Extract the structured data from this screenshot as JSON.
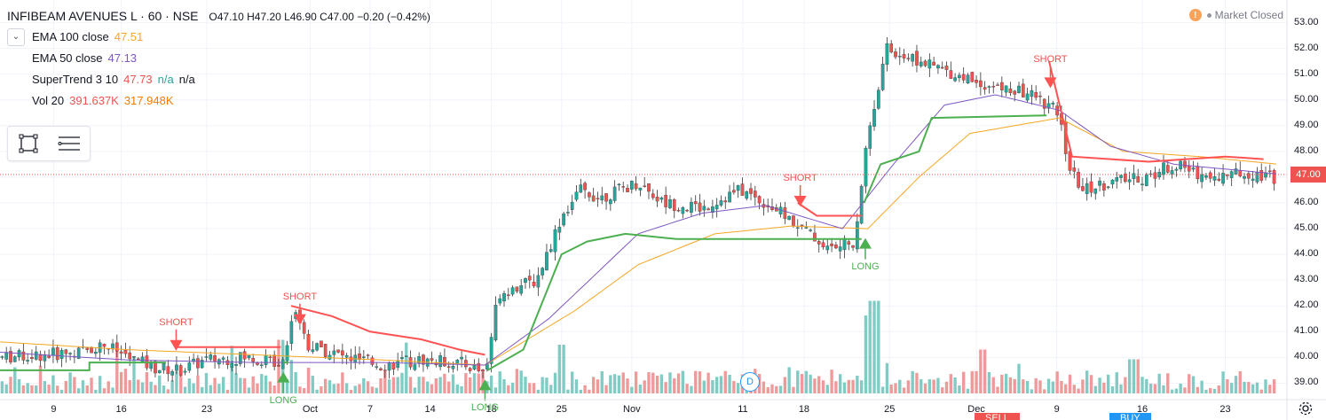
{
  "header": {
    "symbol_title": "INFIBEAM AVENUES L · 60 · NSE",
    "ohlc": "O47.10 H47.20 L46.90 C47.00 −0.20 (−0.42%)"
  },
  "indicators": [
    {
      "name": "EMA 100 close",
      "value": "47.51",
      "color": "#f5a623"
    },
    {
      "name": "EMA 50 close",
      "value": "47.13",
      "color": "#7e57c2"
    },
    {
      "name": "SuperTrend 3 10",
      "value": "47.73",
      "extra1": "n/a",
      "extra2": "n/a",
      "color": "#ef5350",
      "extra_color": "#26a69a"
    },
    {
      "name": "Vol 20",
      "value": "391.637K",
      "value2": "317.948K",
      "color": "#ef5350",
      "color2": "#f57c00"
    }
  ],
  "market_status": {
    "icon": "!",
    "label": "Market Closed"
  },
  "last_price": "47.00",
  "toolbox": {
    "icons": [
      "select-rect-icon",
      "menu-lines-icon"
    ]
  },
  "colors": {
    "up": "#26a69a",
    "down": "#ef5350",
    "ema100": "#f5a623",
    "ema50": "#7e57c2",
    "st_up": "#4caf50",
    "st_down": "#ff5252",
    "vol_up": "#80cbc4",
    "vol_down": "#ef9a9a",
    "grid": "#f0f3fa"
  },
  "chart_data": {
    "type": "candlestick",
    "title": "INFIBEAM AVENUES L · 60 · NSE",
    "xlabel": "",
    "ylabel": "",
    "ylim": [
      38.6,
      53.4
    ],
    "y_ticks": [
      "53.00",
      "52.00",
      "51.00",
      "50.00",
      "49.00",
      "48.00",
      "47.00",
      "46.00",
      "45.00",
      "44.00",
      "43.00",
      "42.00",
      "41.00",
      "40.00",
      "39.00"
    ],
    "x_ticks": [
      "9",
      "16",
      "23",
      "Oct",
      "7",
      "14",
      "18",
      "25",
      "Nov",
      "11",
      "18",
      "25",
      "Dec",
      "9",
      "16",
      "23"
    ],
    "x_tick_index": [
      0.042,
      0.095,
      0.162,
      0.243,
      0.29,
      0.337,
      0.385,
      0.44,
      0.495,
      0.582,
      0.63,
      0.697,
      0.765,
      0.828,
      0.895,
      0.96
    ],
    "price_anchors": [
      [
        0,
        40.0
      ],
      [
        0.03,
        40.1
      ],
      [
        0.06,
        40.2
      ],
      [
        0.08,
        40.5
      ],
      [
        0.1,
        40.0
      ],
      [
        0.12,
        39.6
      ],
      [
        0.14,
        39.5
      ],
      [
        0.16,
        39.9
      ],
      [
        0.19,
        40.0
      ],
      [
        0.22,
        39.8
      ],
      [
        0.23,
        42.0
      ],
      [
        0.24,
        40.5
      ],
      [
        0.27,
        40.0
      ],
      [
        0.3,
        39.7
      ],
      [
        0.33,
        39.9
      ],
      [
        0.36,
        39.8
      ],
      [
        0.38,
        39.4
      ],
      [
        0.39,
        42.5
      ],
      [
        0.42,
        43.0
      ],
      [
        0.44,
        45.5
      ],
      [
        0.455,
        46.5
      ],
      [
        0.47,
        46.2
      ],
      [
        0.5,
        46.8
      ],
      [
        0.52,
        46.0
      ],
      [
        0.55,
        45.8
      ],
      [
        0.58,
        46.5
      ],
      [
        0.6,
        46.0
      ],
      [
        0.63,
        45.0
      ],
      [
        0.65,
        44.2
      ],
      [
        0.67,
        44.5
      ],
      [
        0.68,
        48.5
      ],
      [
        0.695,
        52.0
      ],
      [
        0.72,
        51.5
      ],
      [
        0.75,
        51.0
      ],
      [
        0.78,
        50.5
      ],
      [
        0.81,
        50.2
      ],
      [
        0.83,
        49.5
      ],
      [
        0.84,
        47.2
      ],
      [
        0.85,
        46.5
      ],
      [
        0.87,
        46.8
      ],
      [
        0.9,
        47.0
      ],
      [
        0.92,
        47.5
      ],
      [
        0.95,
        47.0
      ],
      [
        0.98,
        47.2
      ],
      [
        1.0,
        47.0
      ]
    ],
    "ema50_anchors": [
      [
        0,
        40.2
      ],
      [
        0.1,
        39.9
      ],
      [
        0.2,
        39.8
      ],
      [
        0.3,
        39.8
      ],
      [
        0.38,
        39.7
      ],
      [
        0.43,
        41.5
      ],
      [
        0.5,
        44.8
      ],
      [
        0.55,
        45.6
      ],
      [
        0.6,
        45.9
      ],
      [
        0.66,
        45.0
      ],
      [
        0.7,
        47.5
      ],
      [
        0.74,
        49.8
      ],
      [
        0.78,
        50.2
      ],
      [
        0.83,
        49.6
      ],
      [
        0.87,
        48.2
      ],
      [
        0.92,
        47.5
      ],
      [
        1.0,
        47.13
      ]
    ],
    "ema100_anchors": [
      [
        0,
        40.6
      ],
      [
        0.1,
        40.3
      ],
      [
        0.2,
        40.1
      ],
      [
        0.3,
        39.9
      ],
      [
        0.38,
        39.7
      ],
      [
        0.45,
        41.8
      ],
      [
        0.5,
        43.6
      ],
      [
        0.56,
        44.8
      ],
      [
        0.62,
        45.1
      ],
      [
        0.68,
        45.0
      ],
      [
        0.72,
        47.0
      ],
      [
        0.76,
        48.7
      ],
      [
        0.83,
        49.3
      ],
      [
        0.88,
        48.0
      ],
      [
        0.94,
        47.8
      ],
      [
        1.0,
        47.51
      ]
    ],
    "supertrend": [
      {
        "trend": "up",
        "points": [
          [
            0,
            39.5
          ],
          [
            0.07,
            39.5
          ],
          [
            0.07,
            39.8
          ],
          [
            0.13,
            39.8
          ]
        ]
      },
      {
        "trend": "down",
        "points": [
          [
            0.137,
            40.4
          ],
          [
            0.22,
            40.4
          ]
        ]
      },
      {
        "trend": "up",
        "points": [
          [
            0.222,
            39.8
          ],
          [
            0.226,
            39.8
          ]
        ]
      },
      {
        "trend": "down",
        "points": [
          [
            0.228,
            42.0
          ],
          [
            0.26,
            41.6
          ],
          [
            0.29,
            41.0
          ],
          [
            0.33,
            40.7
          ],
          [
            0.36,
            40.3
          ],
          [
            0.38,
            40.1
          ]
        ]
      },
      {
        "trend": "up",
        "points": [
          [
            0.382,
            39.5
          ],
          [
            0.41,
            40.3
          ],
          [
            0.44,
            44.0
          ],
          [
            0.46,
            44.5
          ],
          [
            0.49,
            44.8
          ],
          [
            0.53,
            44.6
          ],
          [
            0.675,
            44.6
          ]
        ]
      },
      {
        "trend": "down",
        "points": [
          [
            0.625,
            46.0
          ],
          [
            0.64,
            45.5
          ],
          [
            0.675,
            45.5
          ]
        ]
      },
      {
        "trend": "up",
        "points": [
          [
            0.677,
            46.0
          ],
          [
            0.69,
            47.5
          ],
          [
            0.72,
            48.0
          ],
          [
            0.73,
            49.3
          ],
          [
            0.82,
            49.4
          ]
        ]
      },
      {
        "trend": "down",
        "points": [
          [
            0.822,
            51.5
          ],
          [
            0.84,
            47.8
          ],
          [
            0.87,
            47.7
          ],
          [
            0.9,
            47.6
          ],
          [
            0.96,
            47.8
          ],
          [
            0.99,
            47.7
          ]
        ]
      }
    ],
    "signals": [
      {
        "type": "SHORT",
        "x": 0.138,
        "price": 40.4
      },
      {
        "type": "LONG",
        "x": 0.222,
        "price": 39.3
      },
      {
        "type": "SHORT",
        "x": 0.235,
        "price": 41.4
      },
      {
        "type": "LONG",
        "x": 0.38,
        "price": 39.0
      },
      {
        "type": "SHORT",
        "x": 0.627,
        "price": 46.0
      },
      {
        "type": "LONG",
        "x": 0.678,
        "price": 44.5
      },
      {
        "type": "SHORT",
        "x": 0.823,
        "price": 50.6
      }
    ],
    "volume_spikes": [
      [
        0.22,
        0.55
      ],
      [
        0.68,
        0.8
      ],
      [
        0.685,
        0.95
      ],
      [
        0.44,
        0.5
      ],
      [
        0.89,
        0.35
      ],
      [
        0.77,
        0.45
      ]
    ]
  },
  "x_marker": "D",
  "bottom_tabs": [
    {
      "label": "SELL",
      "color": "#ef5350"
    },
    {
      "label": "BUY",
      "color": "#2196f3"
    }
  ]
}
